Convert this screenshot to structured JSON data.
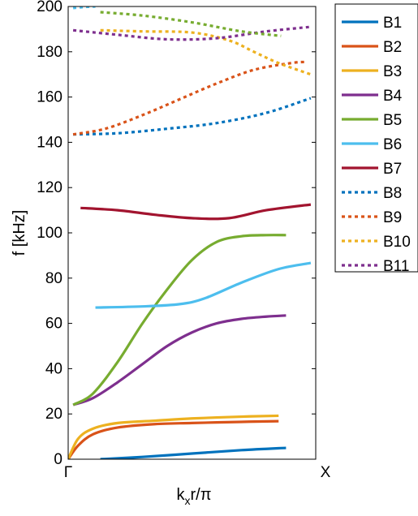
{
  "chart_data": {
    "type": "line",
    "title": "",
    "xlabel": "kₓr/π",
    "ylabel": "f [kHz]",
    "xlim": [
      0,
      1
    ],
    "ylim": [
      0,
      200
    ],
    "x_tick_labels": [
      "Γ",
      "X"
    ],
    "y_ticks": [
      0,
      20,
      40,
      60,
      80,
      100,
      120,
      140,
      160,
      180,
      200
    ],
    "grid": false,
    "legend_position": "right, outside plot area",
    "series": [
      {
        "name": "B1",
        "color": "#0072BD",
        "style": "solid",
        "x": [
          0.13,
          0.3,
          0.5,
          0.7,
          0.88
        ],
        "y": [
          0,
          1,
          2.5,
          4,
          5
        ]
      },
      {
        "name": "B2",
        "color": "#D95319",
        "style": "solid",
        "x": [
          0,
          0.04,
          0.1,
          0.2,
          0.35,
          0.5,
          0.7,
          0.85
        ],
        "y": [
          0,
          6,
          11,
          14,
          15.5,
          16,
          16.5,
          16.8
        ]
      },
      {
        "name": "B3",
        "color": "#EDB120",
        "style": "solid",
        "x": [
          0,
          0.04,
          0.1,
          0.2,
          0.35,
          0.5,
          0.7,
          0.85
        ],
        "y": [
          0,
          9,
          13.5,
          16,
          17,
          18,
          18.8,
          19.2
        ]
      },
      {
        "name": "B4",
        "color": "#7E2F8E",
        "style": "solid",
        "x": [
          0.02,
          0.1,
          0.2,
          0.3,
          0.4,
          0.5,
          0.6,
          0.7,
          0.8,
          0.88
        ],
        "y": [
          24,
          27,
          34,
          42,
          50,
          56,
          60,
          62,
          63,
          63.5
        ]
      },
      {
        "name": "B5",
        "color": "#77AC30",
        "style": "solid",
        "x": [
          0.02,
          0.1,
          0.2,
          0.3,
          0.4,
          0.5,
          0.6,
          0.7,
          0.8,
          0.88
        ],
        "y": [
          24,
          29,
          43,
          60,
          75,
          88,
          96,
          98.5,
          99,
          99
        ]
      },
      {
        "name": "B6",
        "color": "#4DBEEE",
        "style": "solid",
        "x": [
          0.11,
          0.3,
          0.45,
          0.55,
          0.7,
          0.85,
          0.98
        ],
        "y": [
          67,
          67.5,
          68.5,
          71,
          78,
          84,
          86.7
        ]
      },
      {
        "name": "B7",
        "color": "#A2142F",
        "style": "solid",
        "x": [
          0.05,
          0.2,
          0.35,
          0.5,
          0.65,
          0.8,
          0.98
        ],
        "y": [
          111,
          110,
          108,
          106.5,
          106.5,
          110,
          112.5
        ]
      },
      {
        "name": "B8",
        "color": "#0072BD",
        "style": "dotted",
        "x": [
          0.02,
          0.2,
          0.4,
          0.6,
          0.8,
          0.98
        ],
        "y": [
          143.5,
          144,
          146,
          148.5,
          153,
          159.5
        ]
      },
      {
        "name": "B9",
        "color": "#D95319",
        "style": "dotted",
        "x": [
          0.02,
          0.15,
          0.3,
          0.45,
          0.6,
          0.75,
          0.9,
          0.96
        ],
        "y": [
          143.5,
          146,
          152,
          159,
          166,
          172,
          175,
          175.5
        ]
      },
      {
        "name": "B10",
        "color": "#EDB120",
        "style": "dotted",
        "x": [
          0.13,
          0.3,
          0.5,
          0.65,
          0.75,
          0.85,
          0.98
        ],
        "y": [
          189.5,
          189,
          188.5,
          185,
          180,
          175,
          170
        ]
      },
      {
        "name": "B11",
        "color": "#7E2F8E",
        "style": "dotted",
        "x": [
          0.02,
          0.2,
          0.4,
          0.6,
          0.8,
          0.98
        ],
        "y": [
          189.5,
          187.5,
          185.5,
          186,
          189,
          191
        ]
      },
      {
        "name": "B5 (upper, dotted)",
        "legend": false,
        "color": "#77AC30",
        "style": "dotted",
        "x": [
          0.13,
          0.3,
          0.5,
          0.7,
          0.86
        ],
        "y": [
          197.5,
          196,
          193,
          189,
          187
        ]
      },
      {
        "name": "B6 (upper, dotted)",
        "legend": false,
        "color": "#4DBEEE",
        "style": "dotted",
        "x": [
          0.02,
          0.07,
          0.11
        ],
        "y": [
          199.3,
          199.8,
          200
        ]
      }
    ]
  }
}
